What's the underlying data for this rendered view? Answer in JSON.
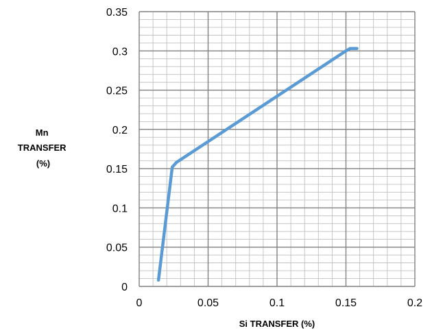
{
  "chart_data": {
    "type": "line",
    "xlabel": "Si TRANSFER (%)",
    "ylabel_lines": [
      "Mn",
      "TRANSFER",
      "(%)"
    ],
    "xlim": [
      0,
      0.2
    ],
    "ylim": [
      0,
      0.35
    ],
    "x_ticks": [
      "0",
      "0.05",
      "0.1",
      "0.15",
      "0.2"
    ],
    "y_ticks": [
      "0",
      "0.05",
      "0.1",
      "0.15",
      "0.2",
      "0.25",
      "0.3",
      "0.35"
    ],
    "grid": true,
    "legend": "none",
    "series": [
      {
        "color": "#5b9bd5",
        "x": [
          0.014,
          0.024,
          0.027,
          0.15,
          0.153,
          0.158
        ],
        "y": [
          0.008,
          0.152,
          0.158,
          0.3,
          0.303,
          0.303
        ]
      }
    ]
  }
}
